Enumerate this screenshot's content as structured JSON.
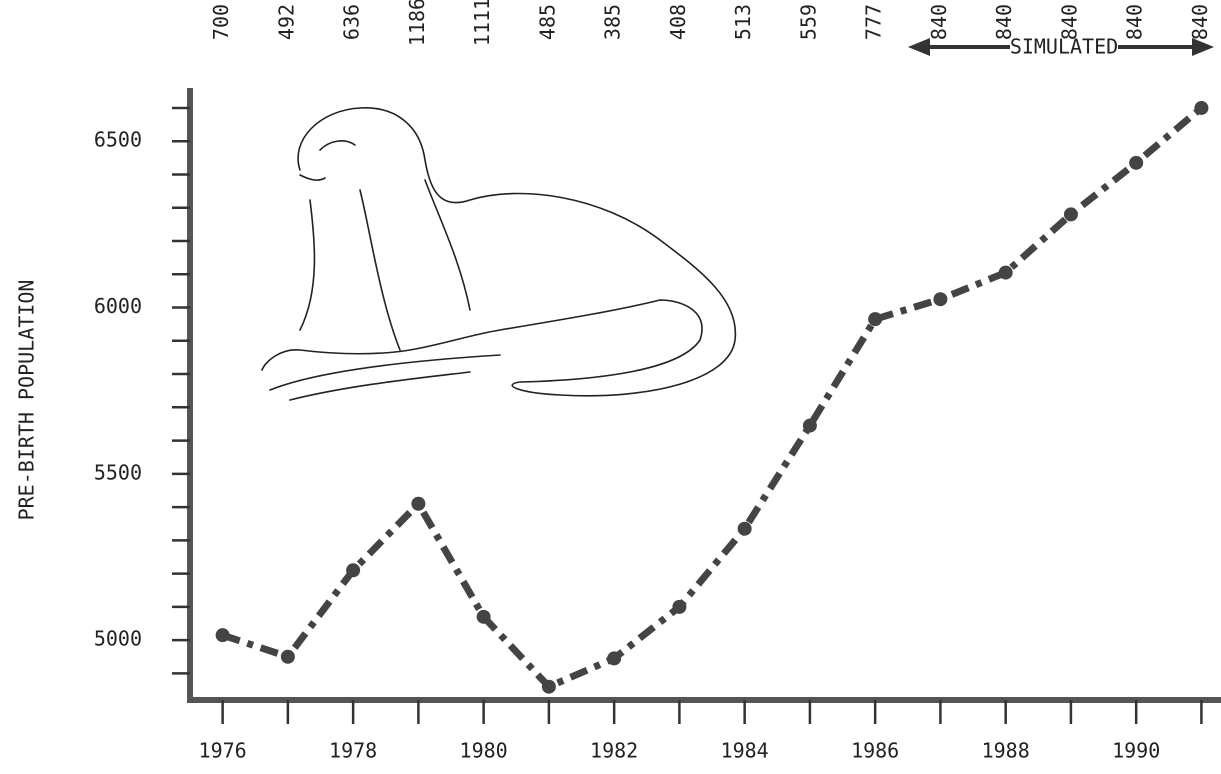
{
  "chart_data": {
    "type": "line",
    "y_label": "PRE-BIRTH POPULATION",
    "annotation": "SIMULATED",
    "x": [
      1976,
      1977,
      1978,
      1979,
      1980,
      1981,
      1982,
      1983,
      1984,
      1985,
      1986,
      1987,
      1988,
      1989,
      1990,
      1991
    ],
    "values": [
      5015,
      4950,
      5210,
      5410,
      5070,
      4860,
      4945,
      5100,
      5335,
      5645,
      5965,
      6025,
      6105,
      6280,
      6435,
      6600
    ],
    "top_labels": [
      "700",
      "492",
      "636",
      "1186",
      "1111",
      "485",
      "385",
      "408",
      "513",
      "559",
      "777",
      "840",
      "840",
      "840",
      "840",
      "840"
    ],
    "color": "#444444",
    "xlim": [
      1975.5,
      1991.3
    ],
    "xticks": [
      1976,
      1978,
      1980,
      1982,
      1984,
      1986,
      1988,
      1990
    ],
    "xminor_ticks": [
      1977,
      1979,
      1981,
      1983,
      1985,
      1987,
      1989,
      1991
    ],
    "ylim": [
      4820,
      6660
    ],
    "yticks": [
      5000,
      5500,
      6000,
      6500
    ],
    "yminor_ticks": [
      4900,
      5100,
      5200,
      5300,
      5400,
      5600,
      5700,
      5800,
      5900,
      6100,
      6200,
      6300,
      6400,
      6600
    ]
  }
}
